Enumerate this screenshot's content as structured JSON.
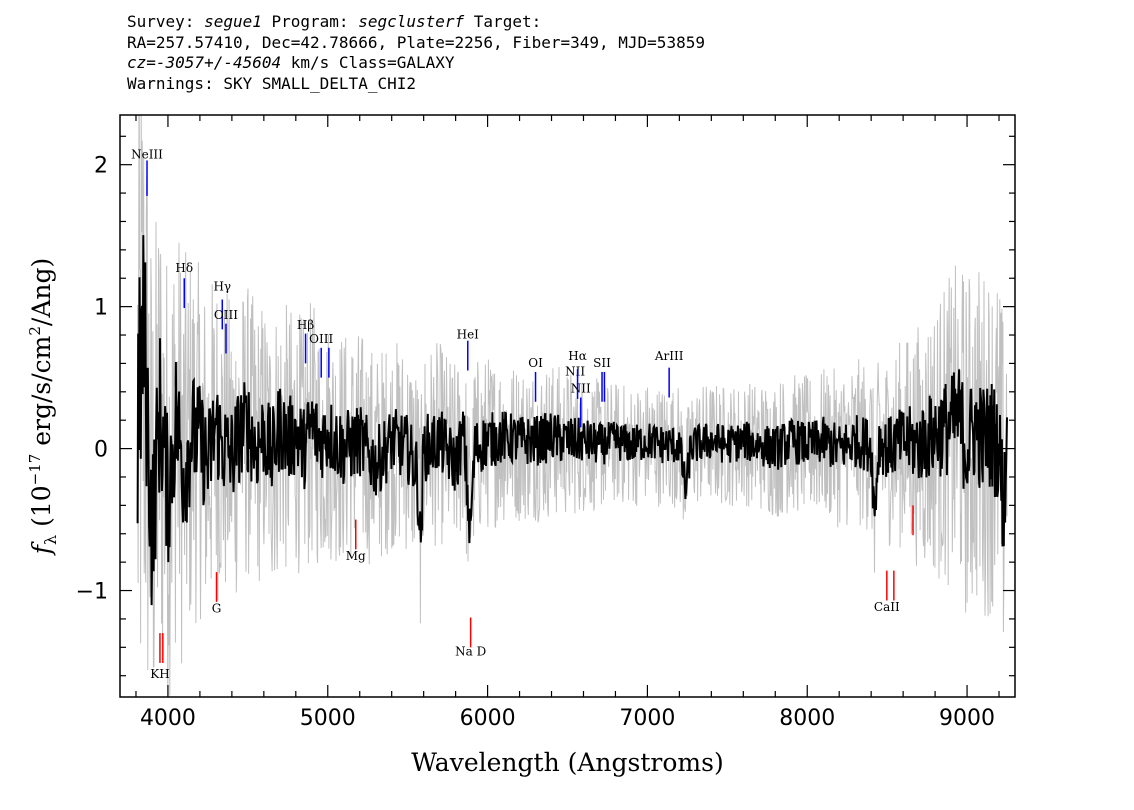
{
  "header": {
    "line1": {
      "survey_label": "Survey: ",
      "survey": "segue1",
      "program_label": " Program: ",
      "program": "segclusterf",
      "target_label": " Target:"
    },
    "line2": "RA=257.57410, Dec=42.78666, Plate=2256, Fiber=349, MJD=53859",
    "line3": {
      "cz": "cz=-3057+/-45604",
      "rest": " km/s Class=GALAXY"
    },
    "line4": "Warnings: SKY SMALL_DELTA_CHI2"
  },
  "chart_data": {
    "type": "line",
    "xlabel": "Wavelength (Angstroms)",
    "ylabel": "f_λ (10^-17 erg/s/cm^2/Ang)",
    "xlim": [
      3700,
      9300
    ],
    "ylim": [
      -1.75,
      2.35
    ],
    "xticks": [
      4000,
      5000,
      6000,
      7000,
      8000,
      9000
    ],
    "yticks": [
      -1,
      0,
      1,
      2
    ],
    "colors": {
      "flux": "#000000",
      "noise": "#c0c0c0",
      "emission": "#0000ff",
      "absorption": "#ff0000"
    },
    "series": [
      {
        "role": "flux",
        "x": [
          3810,
          3850,
          3900,
          3950,
          4000,
          4050,
          4100,
          4150,
          4200,
          4250,
          4300,
          4350,
          4400,
          4450,
          4500,
          4550,
          4600,
          4650,
          4700,
          4750,
          4800,
          4850,
          4900,
          4950,
          5000,
          5100,
          5200,
          5300,
          5400,
          5500,
          5560,
          5580,
          5600,
          5700,
          5800,
          5850,
          5890,
          5920,
          6000,
          6100,
          6200,
          6300,
          6400,
          6500,
          6600,
          6700,
          6800,
          6900,
          7000,
          7100,
          7200,
          7240,
          7270,
          7300,
          7400,
          7500,
          7600,
          7700,
          7800,
          7900,
          8000,
          8100,
          8200,
          8300,
          8400,
          8420,
          8450,
          8500,
          8600,
          8700,
          8800,
          8900,
          8950,
          9000,
          9050,
          9100,
          9150,
          9200,
          9230,
          9250
        ],
        "y": [
          0.3,
          1.6,
          -1.1,
          0.5,
          -0.6,
          0.4,
          -0.3,
          0.2,
          0.1,
          -0.2,
          0.3,
          0.0,
          -0.1,
          0.2,
          0.3,
          0.0,
          0.2,
          -0.1,
          0.3,
          0.1,
          0.2,
          0.0,
          0.3,
          0.1,
          0.2,
          0.0,
          0.1,
          -0.2,
          0.1,
          0.0,
          -0.3,
          -1.3,
          0.0,
          0.1,
          -0.2,
          0.2,
          -1.1,
          0.0,
          0.1,
          0.15,
          0.1,
          0.1,
          0.15,
          0.1,
          0.1,
          0.05,
          0.1,
          0.05,
          0.1,
          0.05,
          0.05,
          -0.55,
          0.0,
          0.05,
          0.1,
          0.05,
          0.1,
          0.05,
          0.0,
          0.1,
          0.05,
          0.1,
          0.0,
          0.1,
          0.05,
          -0.85,
          0.1,
          0.0,
          0.1,
          0.05,
          0.2,
          0.3,
          0.4,
          0.0,
          0.3,
          0.1,
          0.2,
          0.0,
          -0.8,
          0.2
        ]
      },
      {
        "role": "noise",
        "x": [
          3810,
          3900,
          4000,
          4100,
          4200,
          4300,
          4400,
          4500,
          4600,
          4700,
          4800,
          4900,
          5000,
          5200,
          5400,
          5600,
          5800,
          6000,
          6200,
          6400,
          6600,
          6800,
          7000,
          7200,
          7400,
          7600,
          7800,
          8000,
          8200,
          8400,
          8600,
          8800,
          9000,
          9200,
          9250
        ],
        "y": [
          2.3,
          1.5,
          1.3,
          1.2,
          1.0,
          0.95,
          0.9,
          0.85,
          0.8,
          0.8,
          0.75,
          0.75,
          0.7,
          0.65,
          0.6,
          0.6,
          0.55,
          0.5,
          0.45,
          0.45,
          0.4,
          0.35,
          0.35,
          0.35,
          0.35,
          0.35,
          0.4,
          0.4,
          0.45,
          0.5,
          0.6,
          0.8,
          1.0,
          1.0,
          1.0
        ]
      }
    ],
    "emission_lines": [
      {
        "label": "NeIII",
        "x": 3869,
        "y_label": 2.03,
        "y1": 2.03,
        "y2": 1.78
      },
      {
        "label": "Hδ",
        "x": 4102,
        "y_label": 1.23,
        "y1": 1.2,
        "y2": 0.99
      },
      {
        "label": "Hγ",
        "x": 4340,
        "y_label": 1.1,
        "y1": 1.05,
        "y2": 0.84
      },
      {
        "label": "OIII",
        "x": 4363,
        "y_label": 0.9,
        "y1": 0.88,
        "y2": 0.67
      },
      {
        "label": "Hβ",
        "x": 4861,
        "y_label": 0.83,
        "y1": 0.81,
        "y2": 0.6
      },
      {
        "label": "OIII",
        "x": 4959,
        "y_label": 0.73,
        "y1": 0.71,
        "y2": 0.5
      },
      {
        "label": "OIII",
        "x": 5007,
        "y_label": null,
        "y1": 0.71,
        "y2": 0.5
      },
      {
        "label": "HeI",
        "x": 5876,
        "y_label": 0.76,
        "y1": 0.76,
        "y2": 0.55
      },
      {
        "label": "OI",
        "x": 6300,
        "y_label": 0.56,
        "y1": 0.54,
        "y2": 0.33
      },
      {
        "label": "NII",
        "x": 6548,
        "y_label": 0.5,
        "y1": null,
        "y2": null
      },
      {
        "label": "Hα",
        "x": 6563,
        "y_label": 0.61,
        "y1": 0.56,
        "y2": 0.35
      },
      {
        "label": "NII",
        "x": 6583,
        "y_label": 0.38,
        "y1": 0.36,
        "y2": 0.15
      },
      {
        "label": "SII",
        "x": 6716,
        "y_label": 0.56,
        "y1": 0.54,
        "y2": 0.33
      },
      {
        "label": "SII",
        "x": 6731,
        "y_label": null,
        "y1": 0.54,
        "y2": 0.33
      },
      {
        "label": "ArIII",
        "x": 7136,
        "y_label": 0.61,
        "y1": 0.57,
        "y2": 0.36
      }
    ],
    "absorption_lines": [
      {
        "label": "KH",
        "x": 3950,
        "y_label": -1.63,
        "y1": -1.3,
        "y2": -1.51
      },
      {
        "label": null,
        "x": 3968,
        "y_label": null,
        "y1": -1.3,
        "y2": -1.51
      },
      {
        "label": "G",
        "x": 4304,
        "y_label": -1.17,
        "y1": -0.87,
        "y2": -1.08
      },
      {
        "label": "Mg",
        "x": 5175,
        "y_label": -0.8,
        "y1": -0.5,
        "y2": -0.71
      },
      {
        "label": "Na D",
        "x": 5894,
        "y_label": -1.47,
        "y1": -1.19,
        "y2": -1.4
      },
      {
        "label": "CaII",
        "x": 8498,
        "y_label": -1.16,
        "y1": -0.86,
        "y2": -1.07
      },
      {
        "label": null,
        "x": 8542,
        "y_label": null,
        "y1": -0.86,
        "y2": -1.07
      },
      {
        "label": null,
        "x": 8662,
        "y_label": null,
        "y1": -0.4,
        "y2": -0.61
      }
    ]
  }
}
